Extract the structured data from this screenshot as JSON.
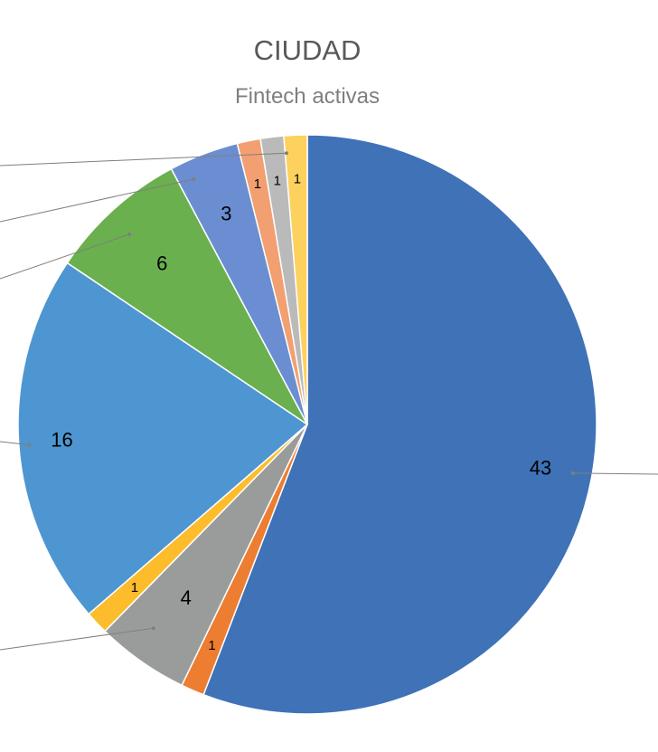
{
  "chart_data": {
    "type": "pie",
    "title": "CIUDAD",
    "subtitle": "Fintech activas",
    "slices": [
      {
        "value": 43,
        "label": "43",
        "color": "#3f72b7"
      },
      {
        "value": 1,
        "label": "1",
        "color": "#ed7d31"
      },
      {
        "value": 4,
        "label": "4",
        "color": "#9a9c9b"
      },
      {
        "value": 1,
        "label": "1",
        "color": "#fcbc2b"
      },
      {
        "value": 16,
        "label": "16",
        "color": "#4e96d1"
      },
      {
        "value": 6,
        "label": "6",
        "color": "#6ab04f"
      },
      {
        "value": 3,
        "label": "3",
        "color": "#6a8ed1"
      },
      {
        "value": 1,
        "label": "1",
        "color": "#f29f72"
      },
      {
        "value": 1,
        "label": "1",
        "color": "#bababa"
      },
      {
        "value": 1,
        "label": "1",
        "color": "#fdd15e"
      }
    ]
  }
}
